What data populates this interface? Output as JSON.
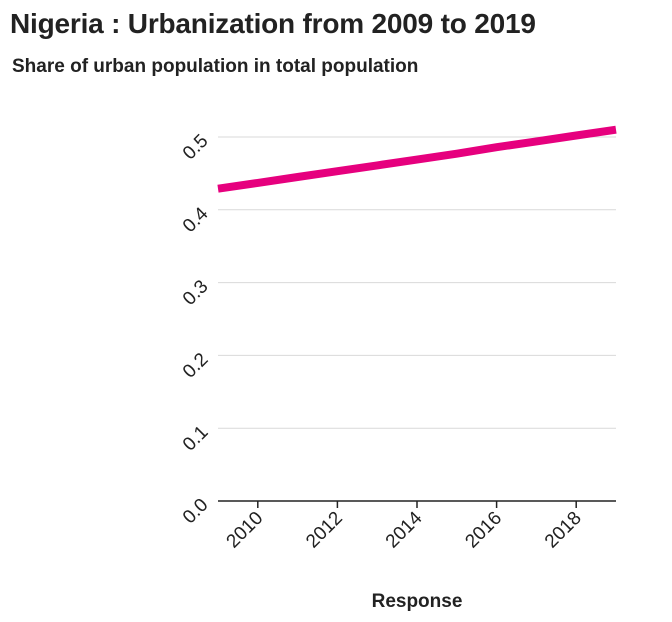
{
  "chart_data": {
    "type": "line",
    "title": "Nigeria : Urbanization from 2009 to 2019",
    "subtitle": "Share of urban population in total population",
    "xlabel": "Response",
    "ylabel": "",
    "x": [
      2009,
      2010,
      2011,
      2012,
      2013,
      2014,
      2015,
      2016,
      2017,
      2018,
      2019
    ],
    "series": [
      {
        "values": [
          0.429,
          0.437,
          0.445,
          0.453,
          0.461,
          0.469,
          0.477,
          0.486,
          0.494,
          0.502,
          0.51
        ],
        "color": "#e6007e"
      }
    ],
    "xlim": [
      2009,
      2019
    ],
    "ylim": [
      0,
      0.5
    ],
    "xticks": [
      2010,
      2012,
      2014,
      2016,
      2018
    ],
    "xtick_labels": [
      "2010",
      "2012",
      "2014",
      "2016",
      "2018"
    ],
    "yticks": [
      0,
      0.1,
      0.2,
      0.3,
      0.4,
      0.5
    ],
    "ytick_labels": [
      "0.0",
      "0.1",
      "0.2",
      "0.3",
      "0.4",
      "0.5"
    ],
    "grid": "horizontal",
    "legend": "none"
  }
}
